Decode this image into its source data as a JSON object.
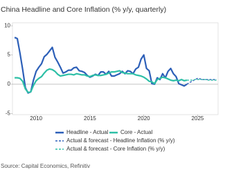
{
  "chart_data": {
    "type": "line",
    "title": "China Headline and Core Inflation (% y/y, quarterly)",
    "source": "Source: Capital Economics, Refinitiv",
    "x": [
      2008,
      2008.25,
      2008.5,
      2008.75,
      2009,
      2009.25,
      2009.5,
      2009.75,
      2010,
      2010.25,
      2010.5,
      2010.75,
      2011,
      2011.25,
      2011.5,
      2011.75,
      2012,
      2012.25,
      2012.5,
      2012.75,
      2013,
      2013.25,
      2013.5,
      2013.75,
      2014,
      2014.25,
      2014.5,
      2014.75,
      2015,
      2015.25,
      2015.5,
      2015.75,
      2016,
      2016.25,
      2016.5,
      2016.75,
      2017,
      2017.25,
      2017.5,
      2017.75,
      2018,
      2018.25,
      2018.5,
      2018.75,
      2019,
      2019.25,
      2019.5,
      2019.75,
      2020,
      2020.25,
      2020.5,
      2020.75,
      2021,
      2021.25,
      2021.5,
      2021.75,
      2022,
      2022.25,
      2022.5,
      2022.75,
      2023,
      2023.25,
      2023.5,
      2023.75,
      2024,
      2024.25,
      2024.5,
      2024.75,
      2025,
      2025.25,
      2025.5,
      2025.75,
      2026,
      2026.25,
      2026.5,
      2026.75
    ],
    "series": [
      {
        "name": "Headline - Actual",
        "color": "#2c5fb8",
        "dashed": false,
        "values": [
          8.0,
          7.8,
          5.3,
          2.5,
          -0.6,
          -1.5,
          -1.3,
          0.7,
          2.2,
          2.9,
          3.5,
          4.7,
          5.1,
          5.7,
          6.3,
          4.6,
          3.8,
          2.9,
          1.9,
          2.1,
          2.4,
          2.4,
          2.8,
          2.9,
          2.3,
          2.2,
          2.0,
          1.5,
          1.2,
          1.4,
          1.7,
          1.5,
          2.1,
          2.1,
          1.7,
          2.2,
          1.4,
          1.4,
          1.6,
          1.8,
          2.2,
          1.8,
          2.3,
          2.2,
          1.8,
          2.6,
          2.9,
          4.3,
          5.0,
          2.7,
          2.3,
          0.1,
          0.0,
          1.1,
          0.8,
          1.8,
          1.1,
          2.2,
          2.7,
          1.8,
          1.3,
          0.1,
          -0.1,
          -0.3,
          0.0,
          null,
          null,
          null,
          null,
          null,
          null,
          null,
          null,
          null,
          null,
          null
        ]
      },
      {
        "name": "Core - Actual",
        "color": "#2dbfa6",
        "dashed": false,
        "values": [
          1.1,
          1.1,
          1.0,
          0.5,
          -0.8,
          -1.4,
          -1.3,
          -0.2,
          0.6,
          1.0,
          1.3,
          1.9,
          2.4,
          2.6,
          2.5,
          2.2,
          1.7,
          1.4,
          1.5,
          1.6,
          1.7,
          1.7,
          1.6,
          1.8,
          1.7,
          1.6,
          1.6,
          1.4,
          1.3,
          1.5,
          1.6,
          1.5,
          1.5,
          1.6,
          1.7,
          1.9,
          2.1,
          2.1,
          2.2,
          2.3,
          2.0,
          1.9,
          1.8,
          1.8,
          1.8,
          1.6,
          1.5,
          1.4,
          1.2,
          0.9,
          0.5,
          0.4,
          0.1,
          0.8,
          1.0,
          1.2,
          1.1,
          0.9,
          0.7,
          0.6,
          0.7,
          0.6,
          0.8,
          0.6,
          0.7,
          null,
          null,
          null,
          null,
          null,
          null,
          null,
          null,
          null,
          null,
          null
        ]
      },
      {
        "name": "Actual & forecast - Headline Inflation (% y/y)",
        "color": "#2c5fb8",
        "dashed": true,
        "values": [
          null,
          null,
          null,
          null,
          null,
          null,
          null,
          null,
          null,
          null,
          null,
          null,
          null,
          null,
          null,
          null,
          null,
          null,
          null,
          null,
          null,
          null,
          null,
          null,
          null,
          null,
          null,
          null,
          null,
          null,
          null,
          null,
          null,
          null,
          null,
          null,
          null,
          null,
          null,
          null,
          null,
          null,
          null,
          null,
          null,
          null,
          null,
          null,
          null,
          null,
          null,
          null,
          null,
          null,
          null,
          null,
          null,
          null,
          null,
          null,
          null,
          null,
          null,
          null,
          0.0,
          0.3,
          0.5,
          0.8,
          1.0,
          0.9,
          0.8,
          0.8,
          0.8,
          0.8,
          0.8,
          0.8
        ]
      },
      {
        "name": "Actual & forecast - Core Inflation (% y/y)",
        "color": "#2dbfa6",
        "dashed": true,
        "values": [
          null,
          null,
          null,
          null,
          null,
          null,
          null,
          null,
          null,
          null,
          null,
          null,
          null,
          null,
          null,
          null,
          null,
          null,
          null,
          null,
          null,
          null,
          null,
          null,
          null,
          null,
          null,
          null,
          null,
          null,
          null,
          null,
          null,
          null,
          null,
          null,
          null,
          null,
          null,
          null,
          null,
          null,
          null,
          null,
          null,
          null,
          null,
          null,
          null,
          null,
          null,
          null,
          null,
          null,
          null,
          null,
          null,
          null,
          null,
          null,
          null,
          null,
          null,
          null,
          0.7,
          0.7,
          0.7,
          0.8,
          0.8,
          0.8,
          0.8,
          0.8,
          0.7,
          0.7,
          0.7,
          0.7
        ]
      }
    ],
    "xlim": [
      2007.8,
      2026.9
    ],
    "xticks": [
      2010,
      2015,
      2020,
      2025
    ],
    "ylim": [
      -5.2,
      10.5
    ],
    "yticks": [
      -5,
      0,
      5,
      10
    ],
    "zero_line": true
  }
}
